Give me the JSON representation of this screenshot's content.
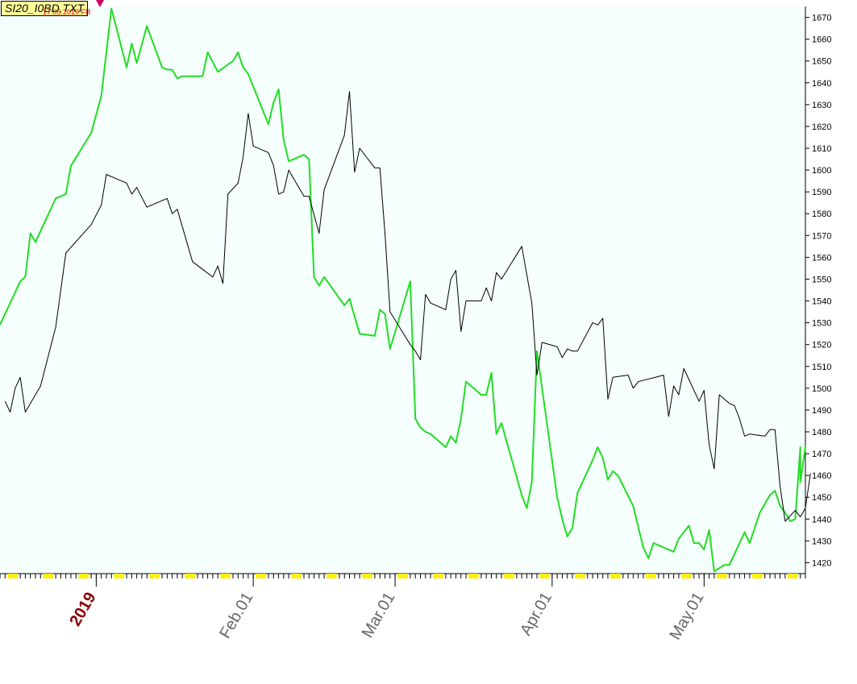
{
  "header": {
    "file_label": "SI20_I0BD.TXT",
    "sub_label": "17.05.2019 FR"
  },
  "colors": {
    "plot_background": "#f5fffd",
    "series_1": "#22dd22",
    "series_2": "#000000",
    "year_label": "#8b0000",
    "month_label": "#666666",
    "tick_marker": "#ffee00"
  },
  "chart_data": {
    "type": "line",
    "title": "",
    "xlabel": "",
    "ylabel": "",
    "ylim": [
      1415,
      1675
    ],
    "yticks": [
      1420,
      1430,
      1440,
      1450,
      1460,
      1470,
      1480,
      1490,
      1500,
      1510,
      1520,
      1530,
      1540,
      1550,
      1560,
      1570,
      1580,
      1590,
      1600,
      1610,
      1620,
      1630,
      1640,
      1650,
      1660,
      1670
    ],
    "xlim": [
      "2018-12-13",
      "2019-05-21"
    ],
    "xticks": [
      {
        "date": "2019-01-01",
        "label": "2019",
        "kind": "year"
      },
      {
        "date": "2019-02-01",
        "label": "Feb.01",
        "kind": "month"
      },
      {
        "date": "2019-03-01",
        "label": "Mar.01",
        "kind": "month"
      },
      {
        "date": "2019-04-01",
        "label": "Apr.01",
        "kind": "month"
      },
      {
        "date": "2019-05-01",
        "label": "May.01",
        "kind": "month"
      }
    ],
    "grid": false,
    "legend": "none",
    "series": [
      {
        "color": "#22dd22",
        "points": [
          [
            "2018-12-13",
            1529
          ],
          [
            "2018-12-17",
            1549
          ],
          [
            "2018-12-18",
            1551
          ],
          [
            "2018-12-19",
            1571
          ],
          [
            "2018-12-20",
            1567
          ],
          [
            "2018-12-24",
            1587
          ],
          [
            "2018-12-26",
            1589
          ],
          [
            "2018-12-27",
            1602
          ],
          [
            "2018-12-31",
            1617
          ],
          [
            "2019-01-02",
            1634
          ],
          [
            "2019-01-04",
            1674
          ],
          [
            "2019-01-07",
            1647
          ],
          [
            "2019-01-08",
            1658
          ],
          [
            "2019-01-09",
            1649
          ],
          [
            "2019-01-11",
            1666
          ],
          [
            "2019-01-14",
            1647
          ],
          [
            "2019-01-15",
            1646
          ],
          [
            "2019-01-16",
            1646
          ],
          [
            "2019-01-17",
            1642
          ],
          [
            "2019-01-18",
            1643
          ],
          [
            "2019-01-22",
            1643
          ],
          [
            "2019-01-23",
            1654
          ],
          [
            "2019-01-25",
            1645
          ],
          [
            "2019-01-28",
            1650
          ],
          [
            "2019-01-29",
            1654
          ],
          [
            "2019-01-30",
            1647
          ],
          [
            "2019-01-31",
            1644
          ],
          [
            "2019-02-04",
            1621
          ],
          [
            "2019-02-05",
            1631
          ],
          [
            "2019-02-06",
            1637
          ],
          [
            "2019-02-07",
            1614
          ],
          [
            "2019-02-08",
            1604
          ],
          [
            "2019-02-11",
            1607
          ],
          [
            "2019-02-12",
            1605
          ],
          [
            "2019-02-13",
            1551
          ],
          [
            "2019-02-14",
            1547
          ],
          [
            "2019-02-15",
            1551
          ],
          [
            "2019-02-19",
            1538
          ],
          [
            "2019-02-20",
            1541
          ],
          [
            "2019-02-22",
            1525
          ],
          [
            "2019-02-25",
            1524
          ],
          [
            "2019-02-26",
            1536
          ],
          [
            "2019-02-27",
            1534
          ],
          [
            "2019-02-28",
            1518
          ],
          [
            "2019-03-04",
            1549
          ],
          [
            "2019-03-05",
            1486
          ],
          [
            "2019-03-06",
            1482
          ],
          [
            "2019-03-07",
            1480
          ],
          [
            "2019-03-08",
            1479
          ],
          [
            "2019-03-11",
            1473
          ],
          [
            "2019-03-12",
            1478
          ],
          [
            "2019-03-13",
            1475
          ],
          [
            "2019-03-14",
            1486
          ],
          [
            "2019-03-15",
            1503
          ],
          [
            "2019-03-18",
            1497
          ],
          [
            "2019-03-19",
            1497
          ],
          [
            "2019-03-20",
            1507
          ],
          [
            "2019-03-21",
            1479
          ],
          [
            "2019-03-22",
            1484
          ],
          [
            "2019-03-26",
            1451
          ],
          [
            "2019-03-27",
            1445
          ],
          [
            "2019-03-28",
            1457
          ],
          [
            "2019-03-29",
            1517
          ],
          [
            "2019-04-02",
            1450
          ],
          [
            "2019-04-03",
            1440
          ],
          [
            "2019-04-04",
            1432
          ],
          [
            "2019-04-05",
            1436
          ],
          [
            "2019-04-06",
            1452
          ],
          [
            "2019-04-09",
            1467
          ],
          [
            "2019-04-10",
            1473
          ],
          [
            "2019-04-11",
            1468
          ],
          [
            "2019-04-12",
            1458
          ],
          [
            "2019-04-13",
            1462
          ],
          [
            "2019-04-14",
            1460
          ],
          [
            "2019-04-17",
            1446
          ],
          [
            "2019-04-19",
            1427
          ],
          [
            "2019-04-20",
            1422
          ],
          [
            "2019-04-21",
            1429
          ],
          [
            "2019-04-23",
            1427
          ],
          [
            "2019-04-24",
            1426
          ],
          [
            "2019-04-25",
            1425
          ],
          [
            "2019-04-26",
            1431
          ],
          [
            "2019-04-27",
            1434
          ],
          [
            "2019-04-28",
            1437
          ],
          [
            "2019-04-29",
            1429
          ],
          [
            "2019-04-30",
            1429
          ],
          [
            "2019-05-01",
            1426
          ],
          [
            "2019-05-02",
            1435
          ],
          [
            "2019-05-03",
            1416
          ],
          [
            "2019-05-05",
            1419
          ],
          [
            "2019-05-06",
            1419
          ],
          [
            "2019-05-08",
            1429
          ],
          [
            "2019-05-09",
            1434
          ],
          [
            "2019-05-10",
            1429
          ],
          [
            "2019-05-11",
            1436
          ],
          [
            "2019-05-12",
            1443
          ],
          [
            "2019-05-13",
            1447
          ],
          [
            "2019-05-14",
            1451
          ],
          [
            "2019-05-15",
            1453
          ],
          [
            "2019-05-16",
            1446
          ],
          [
            "2019-05-17",
            1443
          ],
          [
            "2019-05-18",
            1439
          ],
          [
            "2019-05-19",
            1440
          ],
          [
            "2019-05-20",
            1473
          ],
          [
            "2019-05-20",
            1457
          ],
          [
            "2019-05-21",
            1473
          ],
          [
            "2019-05-21",
            1474
          ]
        ]
      },
      {
        "color": "#000000",
        "points": [
          [
            "2018-12-14",
            1494
          ],
          [
            "2018-12-15",
            1489
          ],
          [
            "2018-12-16",
            1500
          ],
          [
            "2018-12-17",
            1505
          ],
          [
            "2018-12-18",
            1489
          ],
          [
            "2018-12-21",
            1501
          ],
          [
            "2018-12-24",
            1528
          ],
          [
            "2018-12-26",
            1562
          ],
          [
            "2018-12-31",
            1575
          ],
          [
            "2019-01-02",
            1584
          ],
          [
            "2019-01-03",
            1598
          ],
          [
            "2019-01-07",
            1594
          ],
          [
            "2019-01-08",
            1589
          ],
          [
            "2019-01-09",
            1592
          ],
          [
            "2019-01-11",
            1583
          ],
          [
            "2019-01-15",
            1587
          ],
          [
            "2019-01-16",
            1580
          ],
          [
            "2019-01-17",
            1582
          ],
          [
            "2019-01-20",
            1558
          ],
          [
            "2019-01-24",
            1551
          ],
          [
            "2019-01-25",
            1556
          ],
          [
            "2019-01-26",
            1548
          ],
          [
            "2019-01-27",
            1589
          ],
          [
            "2019-01-29",
            1594
          ],
          [
            "2019-01-30",
            1606
          ],
          [
            "2019-01-31",
            1626
          ],
          [
            "2019-02-01",
            1611
          ],
          [
            "2019-02-04",
            1608
          ],
          [
            "2019-02-05",
            1602
          ],
          [
            "2019-02-06",
            1589
          ],
          [
            "2019-02-07",
            1590
          ],
          [
            "2019-02-08",
            1600
          ],
          [
            "2019-02-11",
            1588
          ],
          [
            "2019-02-12",
            1588
          ],
          [
            "2019-02-14",
            1571
          ],
          [
            "2019-02-15",
            1591
          ],
          [
            "2019-02-19",
            1616
          ],
          [
            "2019-02-20",
            1636
          ],
          [
            "2019-02-21",
            1599
          ],
          [
            "2019-02-22",
            1610
          ],
          [
            "2019-02-25",
            1601
          ],
          [
            "2019-02-26",
            1601
          ],
          [
            "2019-02-27",
            1571
          ],
          [
            "2019-02-28",
            1535
          ],
          [
            "2019-03-04",
            1520
          ],
          [
            "2019-03-05",
            1517
          ],
          [
            "2019-03-06",
            1513
          ],
          [
            "2019-03-07",
            1543
          ],
          [
            "2019-03-08",
            1539
          ],
          [
            "2019-03-11",
            1536
          ],
          [
            "2019-03-12",
            1550
          ],
          [
            "2019-03-13",
            1554
          ],
          [
            "2019-03-14",
            1526
          ],
          [
            "2019-03-15",
            1540
          ],
          [
            "2019-03-18",
            1540
          ],
          [
            "2019-03-19",
            1546
          ],
          [
            "2019-03-20",
            1540
          ],
          [
            "2019-03-21",
            1553
          ],
          [
            "2019-03-22",
            1550
          ],
          [
            "2019-03-26",
            1565
          ],
          [
            "2019-03-28",
            1539
          ],
          [
            "2019-03-29",
            1506
          ],
          [
            "2019-03-30",
            1521
          ],
          [
            "2019-04-02",
            1519
          ],
          [
            "2019-04-03",
            1514
          ],
          [
            "2019-04-04",
            1518
          ],
          [
            "2019-04-05",
            1517
          ],
          [
            "2019-04-06",
            1517
          ],
          [
            "2019-04-09",
            1530
          ],
          [
            "2019-04-10",
            1529
          ],
          [
            "2019-04-11",
            1532
          ],
          [
            "2019-04-12",
            1495
          ],
          [
            "2019-04-13",
            1505
          ],
          [
            "2019-04-16",
            1506
          ],
          [
            "2019-04-17",
            1500
          ],
          [
            "2019-04-18",
            1503
          ],
          [
            "2019-04-23",
            1506
          ],
          [
            "2019-04-24",
            1487
          ],
          [
            "2019-04-25",
            1501
          ],
          [
            "2019-04-26",
            1497
          ],
          [
            "2019-04-27",
            1509
          ],
          [
            "2019-04-28",
            1504
          ],
          [
            "2019-04-30",
            1494
          ],
          [
            "2019-05-01",
            1499
          ],
          [
            "2019-05-02",
            1474
          ],
          [
            "2019-05-03",
            1463
          ],
          [
            "2019-05-04",
            1497
          ],
          [
            "2019-05-06",
            1493
          ],
          [
            "2019-05-07",
            1492
          ],
          [
            "2019-05-08",
            1486
          ],
          [
            "2019-05-09",
            1478
          ],
          [
            "2019-05-10",
            1479
          ],
          [
            "2019-05-13",
            1478
          ],
          [
            "2019-05-14",
            1481
          ],
          [
            "2019-05-15",
            1481
          ],
          [
            "2019-05-16",
            1455
          ],
          [
            "2019-05-17",
            1439
          ],
          [
            "2019-05-19",
            1444
          ],
          [
            "2019-05-20",
            1441
          ],
          [
            "2019-05-21",
            1445
          ],
          [
            "2019-05-22",
            1461
          ]
        ]
      }
    ]
  }
}
